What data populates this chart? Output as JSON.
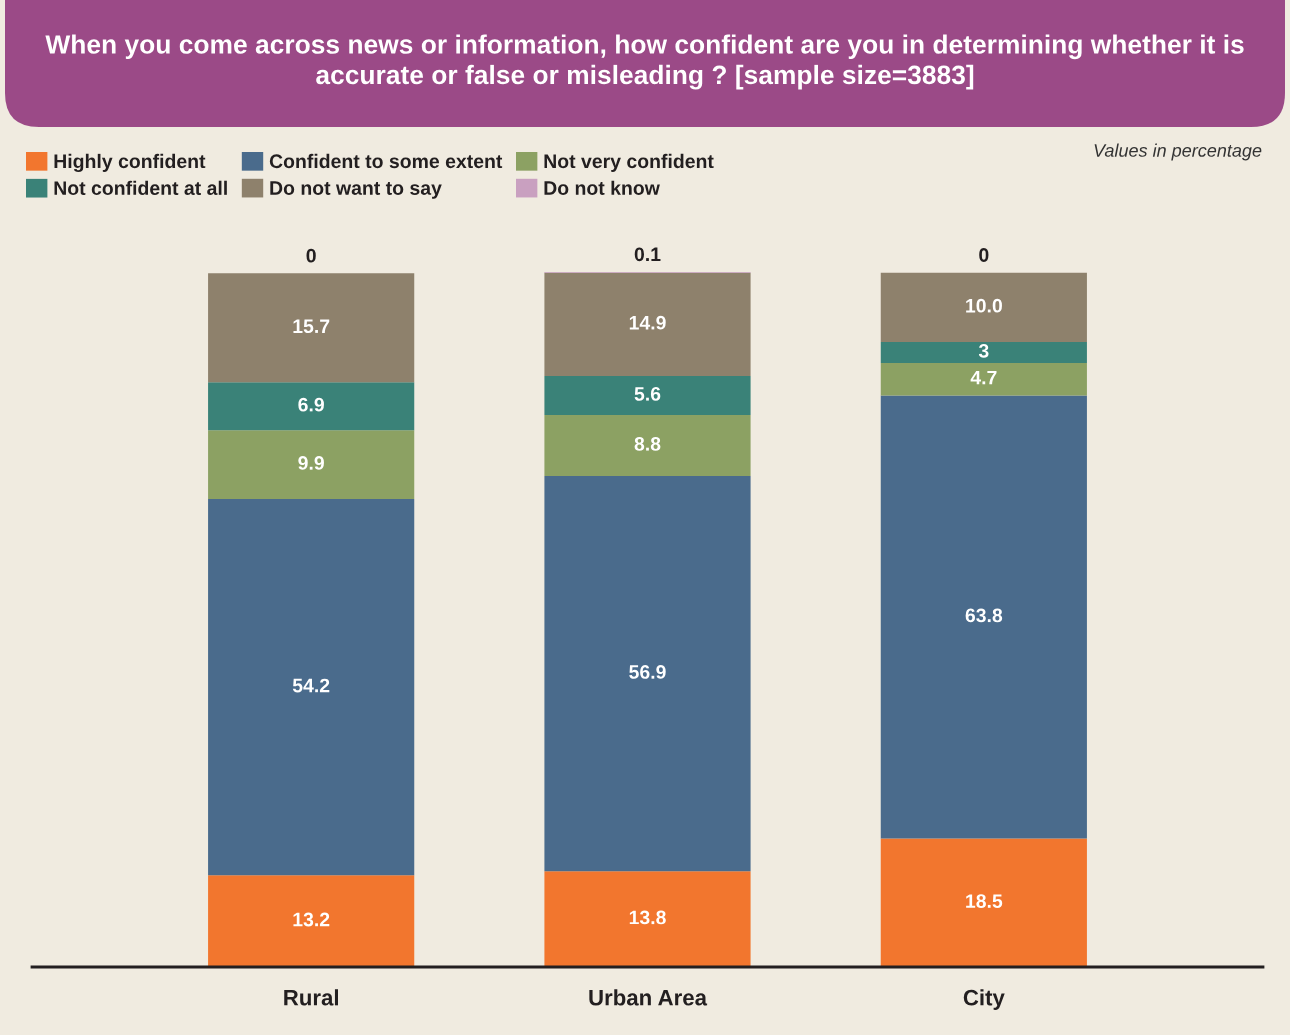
{
  "chart_data": {
    "type": "bar",
    "title": "When you come across news or information, how confident are you in determining whether it is accurate or false or misleading ? [sample size=3883]",
    "annotations": [
      "Values in percentage"
    ],
    "categories": [
      "Rural",
      "Urban Area",
      "City"
    ],
    "stacked": true,
    "legend": "top left",
    "tick_labels": "x",
    "series": [
      {
        "name": "Highly confident",
        "color": "#f2762e",
        "values": [
          13.2,
          13.8,
          18.5
        ],
        "value_labels": [
          "13.2",
          "13.8",
          "18.5"
        ]
      },
      {
        "name": "Confident to some extent",
        "color": "#4a6b8c",
        "values": [
          54.2,
          56.9,
          63.8
        ],
        "value_labels": [
          "54.2",
          "56.9",
          "63.8"
        ]
      },
      {
        "name": "Not very confident",
        "color": "#8ca163",
        "values": [
          9.9,
          8.8,
          4.7
        ],
        "value_labels": [
          "9.9",
          "8.8",
          "4.7"
        ]
      },
      {
        "name": "Not confident at all",
        "color": "#3a8278",
        "values": [
          6.9,
          5.6,
          3
        ],
        "value_labels": [
          "6.9",
          "5.6",
          "3"
        ]
      },
      {
        "name": "Do not want to say",
        "color": "#8e816c",
        "values": [
          15.7,
          14.9,
          10.0
        ],
        "value_labels": [
          "15.7",
          "14.9",
          "10.0"
        ]
      },
      {
        "name": "Do not know",
        "color": "#c9a0c0",
        "values": [
          0,
          0.1,
          0
        ],
        "value_labels": [
          "0",
          "0.1",
          "0"
        ]
      }
    ]
  }
}
